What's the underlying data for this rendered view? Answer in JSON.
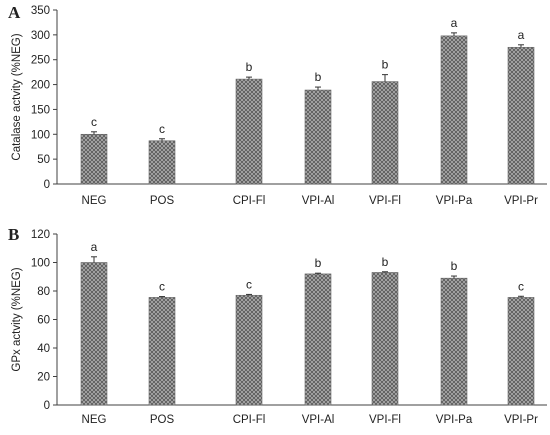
{
  "colors": {
    "bar_fill": "#a8a8a8",
    "bar_pattern": "#555555",
    "axis": "#404040",
    "text": "#222222"
  },
  "chart_data": [
    {
      "type": "bar",
      "panel": "A",
      "ylabel": "Catalase  actvity (%NEG)",
      "ylim": [
        0,
        350
      ],
      "yticks": [
        0,
        50,
        100,
        150,
        200,
        250,
        300,
        350
      ],
      "categories": [
        "NEG",
        "POS",
        "CPI-Fl",
        "VPI-Al",
        "VPI-Fl",
        "VPI-Pa",
        "VPI-Pr"
      ],
      "values": [
        100,
        87,
        211,
        189,
        206,
        298,
        275
      ],
      "errors": [
        5,
        4,
        4,
        6,
        14,
        6,
        5
      ],
      "labels": [
        "c",
        "c",
        "b",
        "b",
        "b",
        "a",
        "a"
      ],
      "grid": false,
      "legend": false
    },
    {
      "type": "bar",
      "panel": "B",
      "ylabel": "GPx actvity (%NEG)",
      "ylim": [
        0,
        120
      ],
      "yticks": [
        0,
        20,
        40,
        60,
        80,
        100,
        120
      ],
      "categories": [
        "NEG",
        "POS",
        "CPI-Fl",
        "VPI-Al",
        "VPI-Fl",
        "VPI-Pa",
        "VPI-Pr"
      ],
      "values": [
        100,
        75.5,
        77,
        92,
        93,
        89,
        75.5
      ],
      "errors": [
        4,
        0.6,
        0.6,
        0.5,
        0.5,
        1.5,
        0.8
      ],
      "labels": [
        "a",
        "c",
        "c",
        "b",
        "b",
        "b",
        "c"
      ],
      "grid": false,
      "legend": false
    }
  ]
}
